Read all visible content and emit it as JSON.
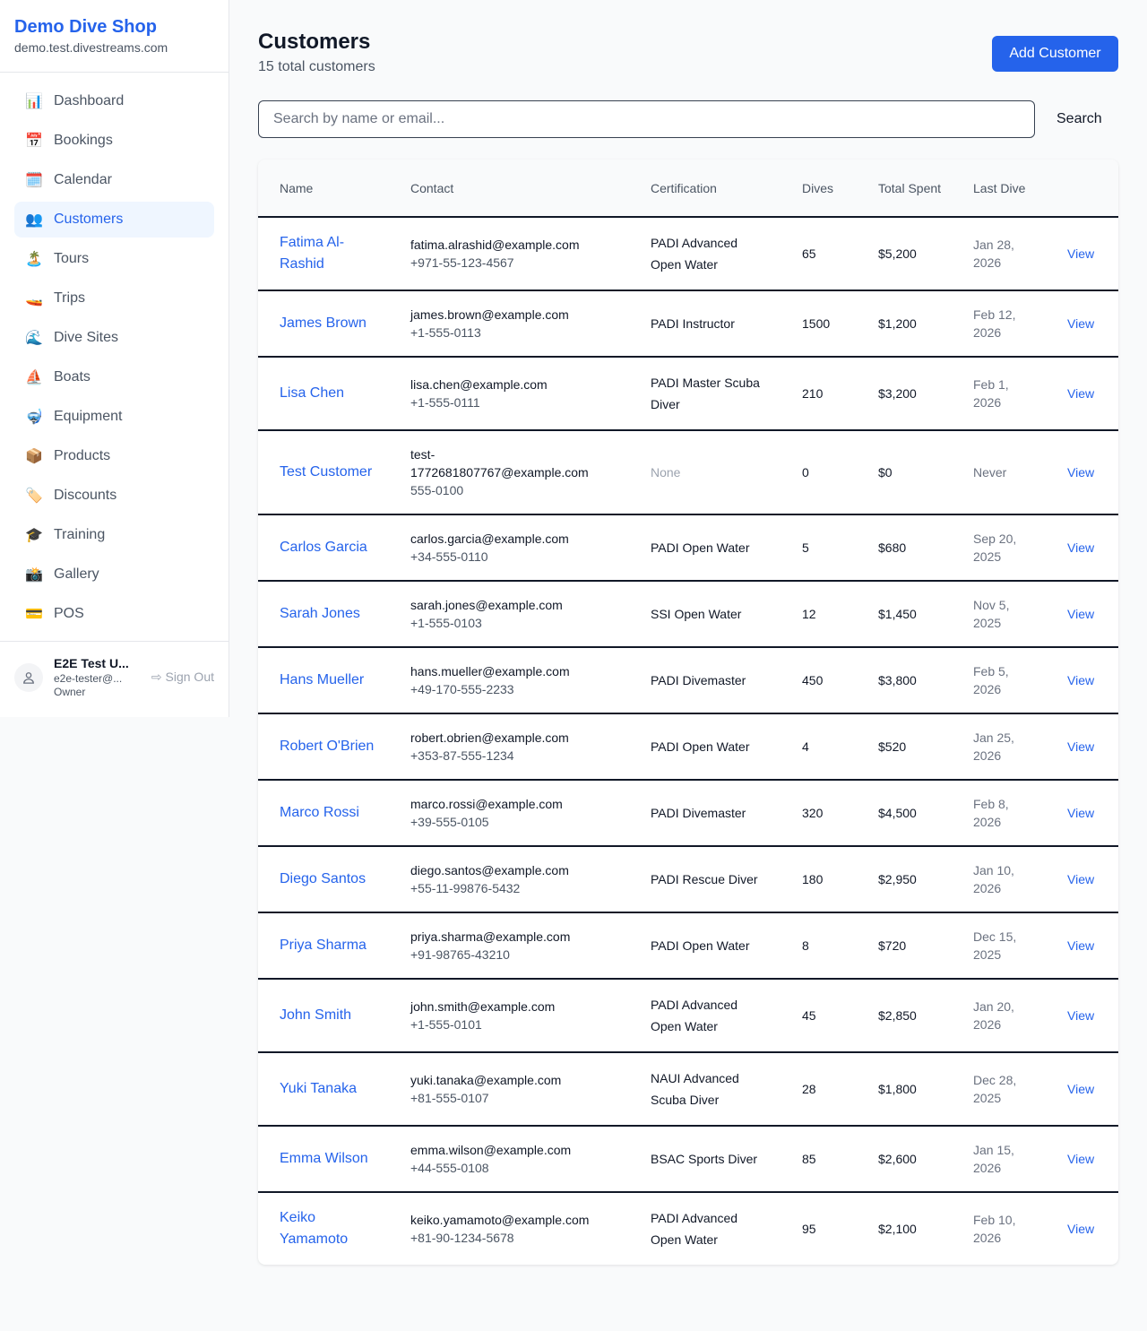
{
  "sidebar": {
    "shop_name": "Demo Dive Shop",
    "domain": "demo.test.divestreams.com",
    "items": [
      {
        "label": "Dashboard",
        "icon": "📊"
      },
      {
        "label": "Bookings",
        "icon": "📅"
      },
      {
        "label": "Calendar",
        "icon": "🗓️"
      },
      {
        "label": "Customers",
        "icon": "👥",
        "active": true
      },
      {
        "label": "Tours",
        "icon": "🏝️"
      },
      {
        "label": "Trips",
        "icon": "🚤"
      },
      {
        "label": "Dive Sites",
        "icon": "🌊"
      },
      {
        "label": "Boats",
        "icon": "⛵"
      },
      {
        "label": "Equipment",
        "icon": "🤿"
      },
      {
        "label": "Products",
        "icon": "📦"
      },
      {
        "label": "Discounts",
        "icon": "🏷️"
      },
      {
        "label": "Training",
        "icon": "🎓"
      },
      {
        "label": "Gallery",
        "icon": "📸"
      },
      {
        "label": "POS",
        "icon": "💳"
      }
    ],
    "user": {
      "name": "E2E Test U...",
      "email": "e2e-tester@...",
      "role": "Owner",
      "sign_out": "Sign Out"
    }
  },
  "header": {
    "title": "Customers",
    "subtitle": "15 total customers",
    "add_button": "Add Customer"
  },
  "search": {
    "placeholder": "Search by name or email...",
    "value": "",
    "button": "Search"
  },
  "table": {
    "columns": [
      "Name",
      "Contact",
      "Certification",
      "Dives",
      "Total Spent",
      "Last Dive",
      ""
    ],
    "rows": [
      {
        "name": "Fatima Al-Rashid",
        "email": "fatima.alrashid@example.com",
        "phone": "+971-55-123-4567",
        "cert": "PADI Advanced Open Water",
        "dives": "65",
        "spent": "$5,200",
        "last": "Jan 28, 2026",
        "action": "View"
      },
      {
        "name": "James Brown",
        "email": "james.brown@example.com",
        "phone": "+1-555-0113",
        "cert": "PADI Instructor",
        "dives": "1500",
        "spent": "$1,200",
        "last": "Feb 12, 2026",
        "action": "View"
      },
      {
        "name": "Lisa Chen",
        "email": "lisa.chen@example.com",
        "phone": "+1-555-0111",
        "cert": "PADI Master Scuba Diver",
        "dives": "210",
        "spent": "$3,200",
        "last": "Feb 1, 2026",
        "action": "View"
      },
      {
        "name": "Test Customer",
        "email": "test-1772681807767@example.com",
        "phone": "555-0100",
        "cert": "None",
        "dives": "0",
        "spent": "$0",
        "last": "Never",
        "action": "View"
      },
      {
        "name": "Carlos Garcia",
        "email": "carlos.garcia@example.com",
        "phone": "+34-555-0110",
        "cert": "PADI Open Water",
        "dives": "5",
        "spent": "$680",
        "last": "Sep 20, 2025",
        "action": "View"
      },
      {
        "name": "Sarah Jones",
        "email": "sarah.jones@example.com",
        "phone": "+1-555-0103",
        "cert": "SSI Open Water",
        "dives": "12",
        "spent": "$1,450",
        "last": "Nov 5, 2025",
        "action": "View"
      },
      {
        "name": "Hans Mueller",
        "email": "hans.mueller@example.com",
        "phone": "+49-170-555-2233",
        "cert": "PADI Divemaster",
        "dives": "450",
        "spent": "$3,800",
        "last": "Feb 5, 2026",
        "action": "View"
      },
      {
        "name": "Robert O'Brien",
        "email": "robert.obrien@example.com",
        "phone": "+353-87-555-1234",
        "cert": "PADI Open Water",
        "dives": "4",
        "spent": "$520",
        "last": "Jan 25, 2026",
        "action": "View"
      },
      {
        "name": "Marco Rossi",
        "email": "marco.rossi@example.com",
        "phone": "+39-555-0105",
        "cert": "PADI Divemaster",
        "dives": "320",
        "spent": "$4,500",
        "last": "Feb 8, 2026",
        "action": "View"
      },
      {
        "name": "Diego Santos",
        "email": "diego.santos@example.com",
        "phone": "+55-11-99876-5432",
        "cert": "PADI Rescue Diver",
        "dives": "180",
        "spent": "$2,950",
        "last": "Jan 10, 2026",
        "action": "View"
      },
      {
        "name": "Priya Sharma",
        "email": "priya.sharma@example.com",
        "phone": "+91-98765-43210",
        "cert": "PADI Open Water",
        "dives": "8",
        "spent": "$720",
        "last": "Dec 15, 2025",
        "action": "View"
      },
      {
        "name": "John Smith",
        "email": "john.smith@example.com",
        "phone": "+1-555-0101",
        "cert": "PADI Advanced Open Water",
        "dives": "45",
        "spent": "$2,850",
        "last": "Jan 20, 2026",
        "action": "View"
      },
      {
        "name": "Yuki Tanaka",
        "email": "yuki.tanaka@example.com",
        "phone": "+81-555-0107",
        "cert": "NAUI Advanced Scuba Diver",
        "dives": "28",
        "spent": "$1,800",
        "last": "Dec 28, 2025",
        "action": "View"
      },
      {
        "name": "Emma Wilson",
        "email": "emma.wilson@example.com",
        "phone": "+44-555-0108",
        "cert": "BSAC Sports Diver",
        "dives": "85",
        "spent": "$2,600",
        "last": "Jan 15, 2026",
        "action": "View"
      },
      {
        "name": "Keiko Yamamoto",
        "email": "keiko.yamamoto@example.com",
        "phone": "+81-90-1234-5678",
        "cert": "PADI Advanced Open Water",
        "dives": "95",
        "spent": "$2,100",
        "last": "Feb 10, 2026",
        "action": "View"
      }
    ]
  }
}
